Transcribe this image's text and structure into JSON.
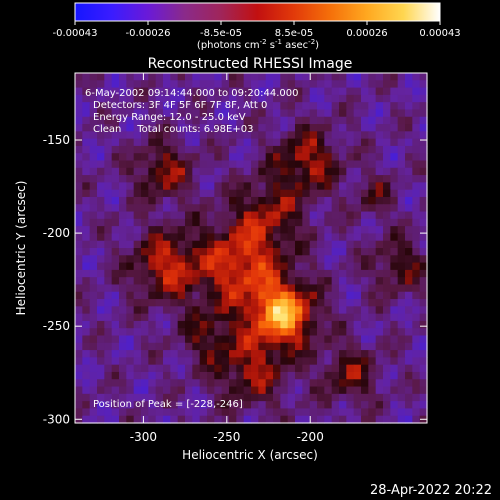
{
  "colorbar": {
    "ticks": [
      "-0.00043",
      "-0.00026",
      "-8.5e-05",
      "8.5e-05",
      "0.00026",
      "0.00043"
    ],
    "units_prefix": "(photons cm",
    "units_sup1": "-2",
    "units_mid": " s",
    "units_sup2": "-1",
    "units_mid2": " asec",
    "units_sup3": "-2",
    "units_suffix": ")",
    "colors": [
      "#1616ff",
      "#3a1cff",
      "#6a1ad8",
      "#8a2a8a",
      "#a0255a",
      "#c21010",
      "#e23a0a",
      "#f5700a",
      "#ffa820",
      "#ffd650",
      "#ffffff"
    ]
  },
  "plot": {
    "title": "Reconstructed RHESSI Image",
    "info_lines": [
      "6-May-2002 09:14:44.000 to 09:20:44.000",
      "Detectors: 3F 4F 5F 6F 7F 8F, Att 0",
      "Energy Range: 12.0 - 25.0 keV",
      "Clean     Total counts: 6.98E+03"
    ],
    "peak_label": "Position of Peak = [-228,-246]",
    "x_axis_title": "Heliocentric X (arcsec)",
    "y_axis_title": "Heliocentric Y (arcsec)",
    "x_ticks": [
      {
        "label": "-300",
        "value": -300
      },
      {
        "label": "-250",
        "value": -250
      },
      {
        "label": "-200",
        "value": -200
      }
    ],
    "y_ticks": [
      {
        "label": "-150",
        "value": -150
      },
      {
        "label": "-200",
        "value": -200
      },
      {
        "label": "-250",
        "value": -250
      },
      {
        "label": "-300",
        "value": -300
      }
    ],
    "x_range": [
      -341,
      -130
    ],
    "y_range": [
      -302,
      -114
    ],
    "peak_position": [
      -228,
      -246
    ]
  },
  "footer": {
    "timestamp": "28-Apr-2022 20:22"
  }
}
